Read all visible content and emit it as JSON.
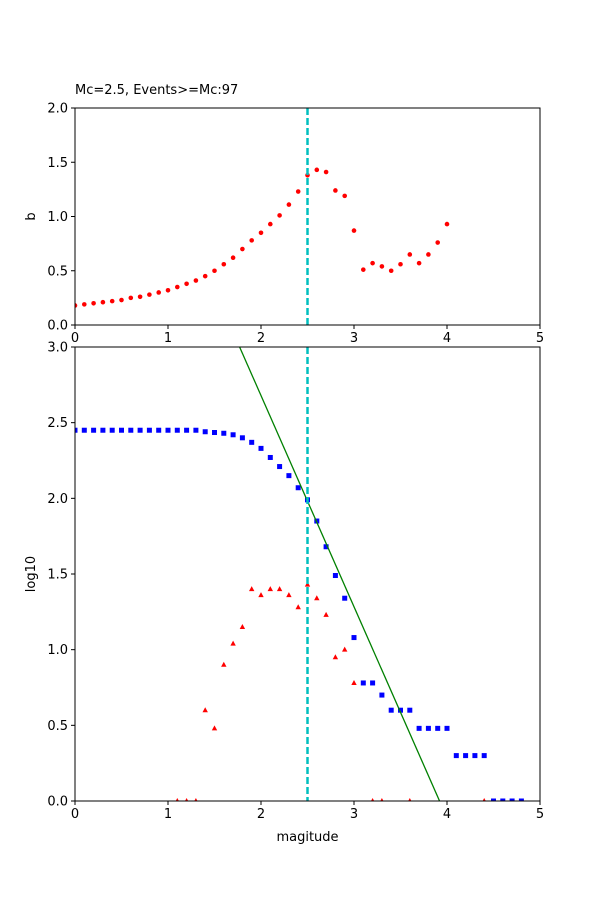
{
  "chart_data": [
    {
      "type": "scatter",
      "title": "Mc=2.5, Events>=Mc:97",
      "ylabel": "b",
      "xlim": [
        0,
        5
      ],
      "ylim": [
        0,
        2
      ],
      "xticks": [
        0,
        1,
        2,
        3,
        4,
        5
      ],
      "yticks": [
        {
          "value": 0,
          "label": "0.0"
        },
        0.5,
        {
          "value": 1,
          "label": "1.0"
        },
        1.5,
        {
          "value": 2,
          "label": "2.0"
        }
      ],
      "grid": false,
      "vlines": [
        {
          "x": 2.5,
          "color": "#00bfbf",
          "dashed": true
        }
      ],
      "series": [
        {
          "color": "#ff0000",
          "mark": "circle",
          "x": [
            0,
            0.1,
            0.2,
            0.3,
            0.4,
            0.5,
            0.6,
            0.7,
            0.8,
            0.9,
            1.0,
            1.1,
            1.2,
            1.3,
            1.4,
            1.5,
            1.6,
            1.7,
            1.8,
            1.9,
            2.0,
            2.1,
            2.2,
            2.3,
            2.4,
            2.5,
            2.6,
            2.7,
            2.8,
            2.9,
            3.0,
            3.1,
            3.2,
            3.3,
            3.4,
            3.5,
            3.6,
            3.7,
            3.8,
            3.9,
            4.0
          ],
          "values": [
            0.18,
            0.19,
            0.2,
            0.21,
            0.22,
            0.23,
            0.25,
            0.26,
            0.28,
            0.3,
            0.32,
            0.35,
            0.38,
            0.41,
            0.45,
            0.5,
            0.56,
            0.62,
            0.7,
            0.78,
            0.85,
            0.93,
            1.01,
            1.11,
            1.23,
            1.38,
            1.43,
            1.41,
            1.24,
            1.19,
            0.87,
            0.51,
            0.57,
            0.54,
            0.5,
            0.56,
            0.65,
            0.57,
            0.65,
            0.76,
            0.93
          ]
        }
      ]
    },
    {
      "type": "scatter",
      "xlabel": "magitude",
      "ylabel": "log10",
      "xlim": [
        0,
        5
      ],
      "ylim": [
        0,
        3
      ],
      "xticks": [
        0,
        1,
        2,
        3,
        4,
        5
      ],
      "yticks": [
        {
          "value": 0,
          "label": "0.0"
        },
        0.5,
        {
          "value": 1,
          "label": "1.0"
        },
        1.5,
        {
          "value": 2,
          "label": "2.0"
        },
        2.5,
        {
          "value": 3,
          "label": "3.0"
        }
      ],
      "grid": false,
      "vlines": [
        {
          "x": 2.5,
          "color": "#00bfbf",
          "dashed": true
        }
      ],
      "series": [
        {
          "color": "#0000ff",
          "mark": "square",
          "x": [
            0,
            0.1,
            0.2,
            0.3,
            0.4,
            0.5,
            0.6,
            0.7,
            0.8,
            0.9,
            1.0,
            1.1,
            1.2,
            1.3,
            1.4,
            1.5,
            1.6,
            1.7,
            1.8,
            1.9,
            2.0,
            2.1,
            2.2,
            2.3,
            2.4,
            2.5,
            2.6,
            2.7,
            2.8,
            2.9,
            3.0,
            3.1,
            3.2,
            3.3,
            3.4,
            3.5,
            3.6,
            3.7,
            3.8,
            3.9,
            4.0,
            4.1,
            4.2,
            4.3,
            4.4,
            4.5,
            4.6,
            4.7,
            4.8
          ],
          "values": [
            2.45,
            2.45,
            2.45,
            2.45,
            2.45,
            2.45,
            2.45,
            2.45,
            2.45,
            2.45,
            2.45,
            2.45,
            2.45,
            2.45,
            2.44,
            2.435,
            2.43,
            2.42,
            2.4,
            2.37,
            2.33,
            2.27,
            2.21,
            2.15,
            2.07,
            1.99,
            1.85,
            1.68,
            1.49,
            1.34,
            1.08,
            0.78,
            0.78,
            0.7,
            0.6,
            0.6,
            0.6,
            0.48,
            0.48,
            0.48,
            0.48,
            0.3,
            0.3,
            0.3,
            0.3,
            0,
            0,
            0,
            0
          ]
        },
        {
          "color": "#ff0000",
          "mark": "triangle",
          "x": [
            1.1,
            1.2,
            1.3,
            1.4,
            1.5,
            1.6,
            1.7,
            1.8,
            1.9,
            2.0,
            2.1,
            2.2,
            2.3,
            2.4,
            2.5,
            2.6,
            2.7,
            2.8,
            2.9,
            3.0,
            3.2,
            3.3,
            3.6,
            4.4
          ],
          "values": [
            0,
            0,
            0,
            0.6,
            0.48,
            0.9,
            1.04,
            1.15,
            1.4,
            1.36,
            1.4,
            1.4,
            1.36,
            1.28,
            1.43,
            1.34,
            1.23,
            0.95,
            1.0,
            0.78,
            0,
            0,
            0,
            0
          ]
        },
        {
          "color": "#008000",
          "mark": "line",
          "x": [
            1.77,
            3.92
          ],
          "values": [
            3.0,
            0
          ]
        }
      ]
    }
  ]
}
